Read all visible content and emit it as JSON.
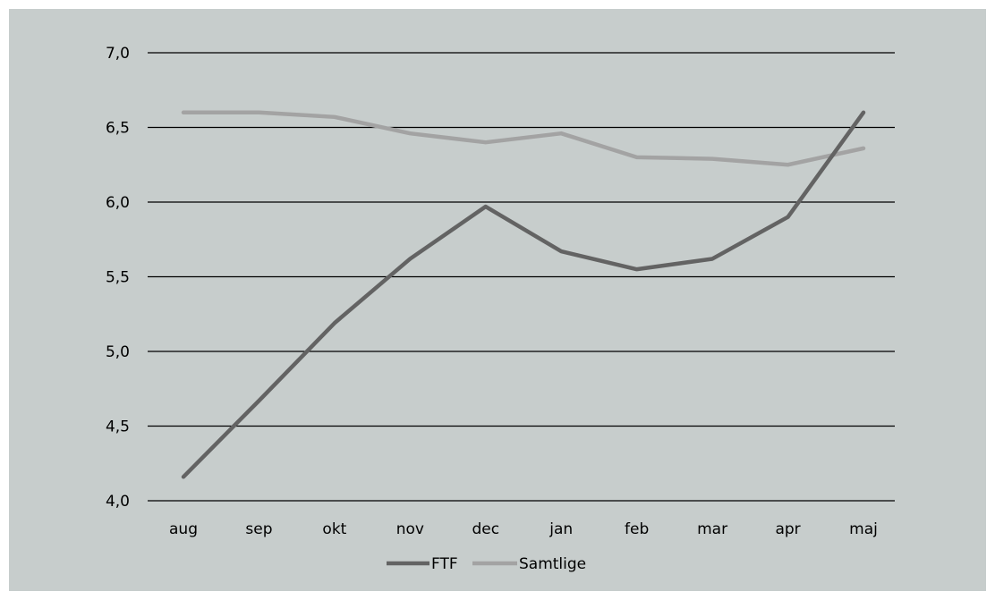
{
  "chart_data": {
    "type": "line",
    "categories": [
      "aug",
      "sep",
      "okt",
      "nov",
      "dec",
      "jan",
      "feb",
      "mar",
      "apr",
      "maj"
    ],
    "series": [
      {
        "name": "FTF",
        "color": "#636363",
        "values": [
          4.16,
          4.67,
          5.19,
          5.62,
          5.97,
          5.67,
          5.55,
          5.62,
          5.9,
          6.6
        ]
      },
      {
        "name": "Samtlige",
        "color": "#a3a3a3",
        "values": [
          6.6,
          6.6,
          6.57,
          6.46,
          6.4,
          6.46,
          6.3,
          6.29,
          6.25,
          6.36
        ]
      }
    ],
    "y_ticks": [
      "4,0",
      "4,5",
      "5,0",
      "5,5",
      "6,0",
      "6,5",
      "7,0"
    ],
    "ylim": [
      4.0,
      7.0
    ],
    "grid": true,
    "legend_position": "bottom",
    "title": "",
    "xlabel": "",
    "ylabel": ""
  }
}
